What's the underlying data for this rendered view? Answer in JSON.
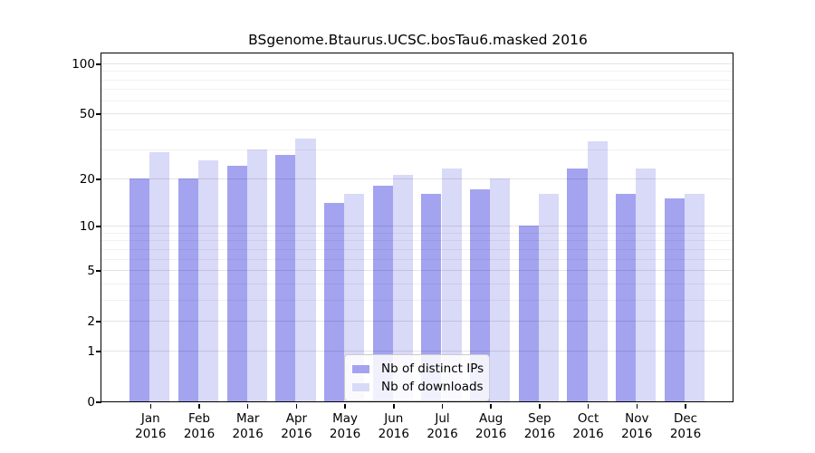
{
  "chart_data": {
    "type": "bar",
    "title": "BSgenome.Btaurus.UCSC.bosTau6.masked 2016",
    "categories": [
      "Jan 2016",
      "Feb 2016",
      "Mar 2016",
      "Apr 2016",
      "May 2016",
      "Jun 2016",
      "Jul 2016",
      "Aug 2016",
      "Sep 2016",
      "Oct 2016",
      "Nov 2016",
      "Dec 2016"
    ],
    "month_labels": [
      "Jan",
      "Feb",
      "Mar",
      "Apr",
      "May",
      "Jun",
      "Jul",
      "Aug",
      "Sep",
      "Oct",
      "Nov",
      "Dec"
    ],
    "year_label": "2016",
    "series": [
      {
        "name": "Nb of distinct IPs",
        "color": "#a3a3f0",
        "values": [
          20,
          20,
          24,
          28,
          14,
          18,
          16,
          17,
          10,
          23,
          16,
          15
        ]
      },
      {
        "name": "Nb of downloads",
        "color": "#d9d9f8",
        "values": [
          29,
          26,
          30,
          35,
          16,
          21,
          23,
          20,
          16,
          34,
          23,
          16
        ]
      }
    ],
    "yscale": "log10(value+1)",
    "ylim": [
      0,
      100
    ],
    "y_ticks": [
      0,
      1,
      2,
      5,
      10,
      20,
      50,
      100
    ],
    "y_minor_gridlines": [
      3,
      4,
      6,
      7,
      8,
      9,
      30,
      40,
      60,
      70,
      80,
      90
    ],
    "grid": "on",
    "legend_position": "bottom-center-inside",
    "axis_color": "#000000",
    "background_color": "#ffffff"
  }
}
